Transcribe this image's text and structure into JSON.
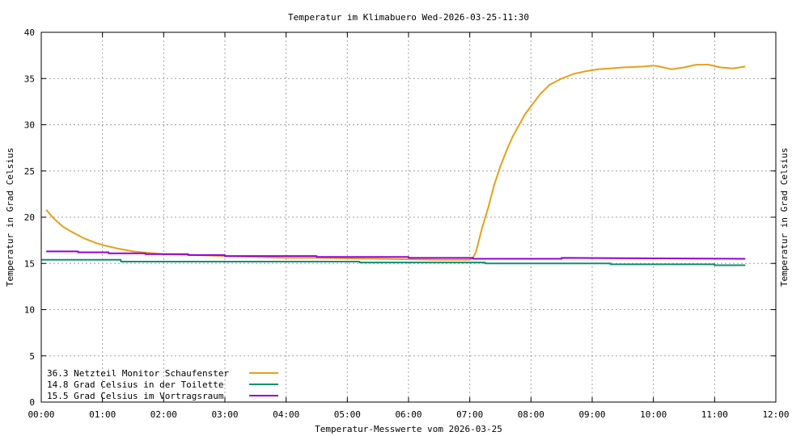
{
  "chart_data": {
    "type": "line",
    "title": "Temperatur im Klimabuero Wed-2026-03-25-11:30",
    "xlabel": "Temperatur-Messwerte vom 2026-03-25",
    "ylabel": "Temperatur in Grad Celsius",
    "y2label": "Temperatur in Grad Celsius",
    "x_unit": "hours",
    "xlim": [
      0,
      12
    ],
    "ylim": [
      0,
      40
    ],
    "grid": true,
    "legend_position": "bottom-left",
    "x_ticks": [
      {
        "value": 0,
        "label": "00:00"
      },
      {
        "value": 1,
        "label": "01:00"
      },
      {
        "value": 2,
        "label": "02:00"
      },
      {
        "value": 3,
        "label": "03:00"
      },
      {
        "value": 4,
        "label": "04:00"
      },
      {
        "value": 5,
        "label": "05:00"
      },
      {
        "value": 6,
        "label": "06:00"
      },
      {
        "value": 7,
        "label": "07:00"
      },
      {
        "value": 8,
        "label": "08:00"
      },
      {
        "value": 9,
        "label": "09:00"
      },
      {
        "value": 10,
        "label": "10:00"
      },
      {
        "value": 11,
        "label": "11:00"
      },
      {
        "value": 12,
        "label": "12:00"
      }
    ],
    "y_ticks": [
      {
        "value": 0,
        "label": "0"
      },
      {
        "value": 5,
        "label": "5"
      },
      {
        "value": 10,
        "label": "10"
      },
      {
        "value": 15,
        "label": "15"
      },
      {
        "value": 20,
        "label": "20"
      },
      {
        "value": 25,
        "label": "25"
      },
      {
        "value": 30,
        "label": "30"
      },
      {
        "value": 35,
        "label": "35"
      },
      {
        "value": 40,
        "label": "40"
      }
    ],
    "series": [
      {
        "name": "36.3 Netzteil Monitor Schaufenster",
        "color": "#e6a01a",
        "x": [
          0.08,
          0.2,
          0.35,
          0.5,
          0.7,
          0.9,
          1.0,
          1.25,
          1.5,
          1.75,
          2.0,
          2.5,
          3.0,
          3.5,
          4.0,
          4.5,
          5.0,
          5.5,
          6.0,
          6.5,
          7.0,
          7.05,
          7.1,
          7.15,
          7.2,
          7.3,
          7.4,
          7.5,
          7.6,
          7.7,
          7.8,
          7.9,
          8.0,
          8.15,
          8.3,
          8.5,
          8.7,
          8.9,
          9.1,
          9.3,
          9.5,
          9.7,
          9.85,
          10.0,
          10.1,
          10.3,
          10.5,
          10.7,
          10.9,
          11.1,
          11.3,
          11.5
        ],
        "y": [
          20.8,
          19.9,
          19.0,
          18.4,
          17.7,
          17.2,
          17.0,
          16.6,
          16.3,
          16.15,
          16.0,
          15.9,
          15.8,
          15.7,
          15.6,
          15.6,
          15.55,
          15.5,
          15.45,
          15.4,
          15.4,
          15.6,
          16.2,
          17.5,
          18.8,
          21.0,
          23.5,
          25.5,
          27.2,
          28.7,
          29.9,
          31.1,
          32.0,
          33.3,
          34.3,
          35.0,
          35.5,
          35.8,
          36.0,
          36.1,
          36.2,
          36.25,
          36.3,
          36.4,
          36.3,
          36.0,
          36.2,
          36.5,
          36.5,
          36.2,
          36.1,
          36.3
        ]
      },
      {
        "name": "14.8 Grad Celsius in der Toilette",
        "color": "#109070",
        "x": [
          0.0,
          1.3,
          1.3,
          5.2,
          5.2,
          7.25,
          7.25,
          9.3,
          9.3,
          11.0,
          11.0,
          11.5
        ],
        "y": [
          15.4,
          15.4,
          15.2,
          15.2,
          15.1,
          15.1,
          15.0,
          15.0,
          14.9,
          14.9,
          14.8,
          14.8
        ]
      },
      {
        "name": "15.5 Grad Celsius im Vortragsraum",
        "color": "#9400d3",
        "x": [
          0.08,
          0.6,
          0.6,
          1.1,
          1.1,
          1.7,
          1.7,
          2.4,
          2.4,
          3.0,
          3.0,
          4.5,
          4.5,
          6.0,
          6.0,
          7.05,
          7.05,
          8.5,
          8.5,
          11.5
        ],
        "y": [
          16.3,
          16.3,
          16.2,
          16.2,
          16.1,
          16.1,
          16.0,
          16.0,
          15.9,
          15.9,
          15.8,
          15.8,
          15.7,
          15.7,
          15.6,
          15.6,
          15.5,
          15.5,
          15.6,
          15.5
        ]
      }
    ]
  }
}
